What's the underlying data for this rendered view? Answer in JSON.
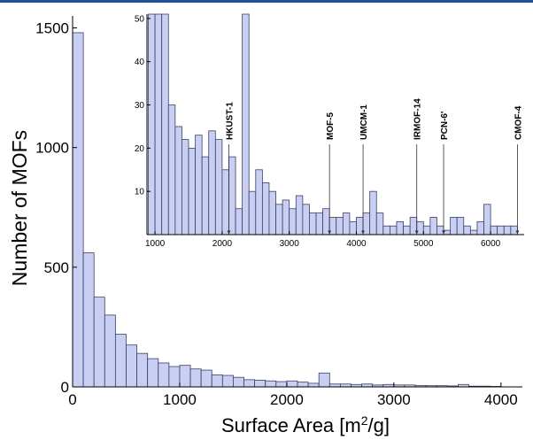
{
  "colors": {
    "bar_fill": "#c8cff3",
    "bar_stroke": "#3a3f66",
    "axis": "#000000",
    "top_rule": "#1f4e9a",
    "arrow": "#333333"
  },
  "chart_data": [
    {
      "id": "main",
      "type": "bar",
      "xlabel": "Surface Area [m²/g]",
      "xlabel_parts": {
        "base": "Surface Area [m",
        "sup": "2",
        "end": "/g]"
      },
      "ylabel": "Number of MOFs",
      "xlim": [
        0,
        4200
      ],
      "ylim": [
        0,
        1550
      ],
      "bin_start": 0,
      "bin_width": 100,
      "values": [
        1480,
        560,
        375,
        300,
        220,
        175,
        140,
        118,
        100,
        85,
        90,
        75,
        70,
        50,
        48,
        40,
        30,
        28,
        25,
        22,
        25,
        20,
        15,
        58,
        12,
        12,
        10,
        12,
        8,
        10,
        8,
        8,
        6,
        5,
        5,
        4,
        10,
        3,
        3,
        2
      ],
      "x_ticks": [
        "0",
        "1000",
        "2000",
        "3000",
        "4000"
      ],
      "x_tick_values": [
        0,
        1000,
        2000,
        3000,
        4000
      ],
      "y_ticks": [
        "0",
        "500",
        "1000",
        "1500"
      ],
      "y_tick_values": [
        0,
        500,
        1000,
        1500
      ],
      "grid": false
    },
    {
      "id": "inset",
      "type": "bar",
      "xlim": [
        880,
        6500
      ],
      "ylim": [
        0,
        51
      ],
      "bin_start": 900,
      "bin_width": 100,
      "values": [
        90,
        90,
        90,
        30,
        25,
        22,
        20,
        23,
        18,
        24,
        22,
        15,
        18,
        6,
        60,
        10,
        15,
        12,
        10,
        7,
        8,
        6,
        9,
        7,
        5,
        5,
        6,
        4,
        4,
        5,
        3,
        4,
        5,
        10,
        5,
        2,
        2,
        3,
        2,
        4,
        3,
        2,
        4,
        2,
        1,
        4,
        4,
        2,
        1,
        3,
        7,
        2,
        2,
        2,
        2
      ],
      "x_ticks": [
        "1000",
        "2000",
        "3000",
        "4000",
        "5000",
        "6000"
      ],
      "x_tick_values": [
        1000,
        2000,
        3000,
        4000,
        5000,
        6000
      ],
      "y_ticks": [
        "10",
        "20",
        "30",
        "40",
        "50"
      ],
      "y_tick_values": [
        10,
        20,
        30,
        40,
        50
      ],
      "annotations": [
        {
          "label": "HKUST-1",
          "x": 2100
        },
        {
          "label": "MOF-5",
          "x": 3600
        },
        {
          "label": "UMCM-1",
          "x": 4100
        },
        {
          "label": "IRMOF-14",
          "x": 4900
        },
        {
          "label": "PCN-6'",
          "x": 5300
        },
        {
          "label": "CMOF-4",
          "x": 6400
        }
      ]
    }
  ]
}
